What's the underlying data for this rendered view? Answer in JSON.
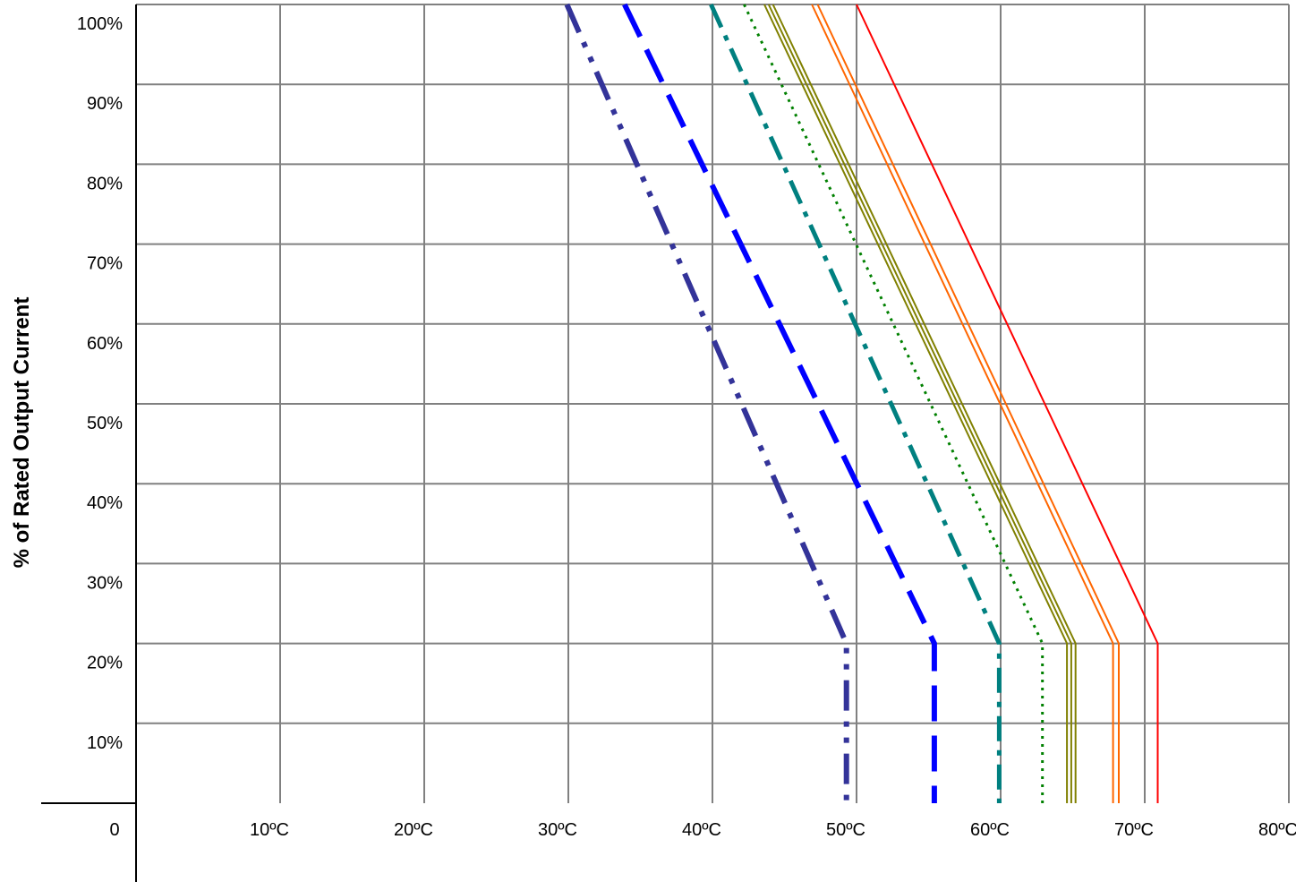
{
  "chart_data": {
    "type": "line",
    "title": "",
    "xlabel": "",
    "ylabel": "% of Rated Output Current",
    "xlim": [
      0,
      80
    ],
    "ylim": [
      0,
      100
    ],
    "x_tick_labels": [
      "0",
      "10ºC",
      "20ºC",
      "30ºC",
      "40ºC",
      "50ºC",
      "60ºC",
      "70ºC",
      "80ºC"
    ],
    "x_tick_values": [
      0,
      10,
      20,
      30,
      40,
      50,
      60,
      70,
      80
    ],
    "y_tick_labels": [
      "10%",
      "20%",
      "30%",
      "40%",
      "50%",
      "60%",
      "70%",
      "80%",
      "90%",
      "100%"
    ],
    "y_tick_values": [
      10,
      20,
      30,
      40,
      50,
      60,
      70,
      80,
      90,
      100
    ],
    "grid": true,
    "series": [
      {
        "color": "#333399",
        "style": "dash-dot-dot",
        "points": [
          [
            29.9,
            100
          ],
          [
            49.3,
            20
          ],
          [
            49.3,
            0
          ]
        ]
      },
      {
        "color": "#0000ff",
        "style": "long-dash",
        "points": [
          [
            33.9,
            100
          ],
          [
            55.4,
            20
          ],
          [
            55.4,
            0
          ]
        ]
      },
      {
        "color": "#008080",
        "style": "dash-dot",
        "points": [
          [
            39.9,
            100
          ],
          [
            59.9,
            20
          ],
          [
            59.9,
            0
          ]
        ]
      },
      {
        "color": "#008000",
        "style": "dotted",
        "points": [
          [
            42.2,
            100
          ],
          [
            62.9,
            20
          ],
          [
            62.9,
            0
          ]
        ]
      },
      {
        "color": "#808000",
        "style": "solid",
        "points": [
          [
            43.6,
            100
          ],
          [
            64.6,
            20
          ],
          [
            64.6,
            0
          ]
        ]
      },
      {
        "color": "#808000",
        "style": "solid",
        "points": [
          [
            43.9,
            100
          ],
          [
            64.9,
            20
          ],
          [
            64.9,
            0
          ]
        ]
      },
      {
        "color": "#808000",
        "style": "solid",
        "points": [
          [
            44.2,
            100
          ],
          [
            65.2,
            20
          ],
          [
            65.2,
            0
          ]
        ]
      },
      {
        "color": "#ff6600",
        "style": "solid",
        "points": [
          [
            46.9,
            100
          ],
          [
            67.8,
            20
          ],
          [
            67.8,
            0
          ]
        ]
      },
      {
        "color": "#ff6600",
        "style": "solid",
        "points": [
          [
            47.3,
            100
          ],
          [
            68.2,
            20
          ],
          [
            68.2,
            0
          ]
        ]
      },
      {
        "color": "#ff0000",
        "style": "solid",
        "points": [
          [
            50.0,
            100
          ],
          [
            70.9,
            20
          ],
          [
            70.9,
            0
          ]
        ]
      }
    ]
  }
}
